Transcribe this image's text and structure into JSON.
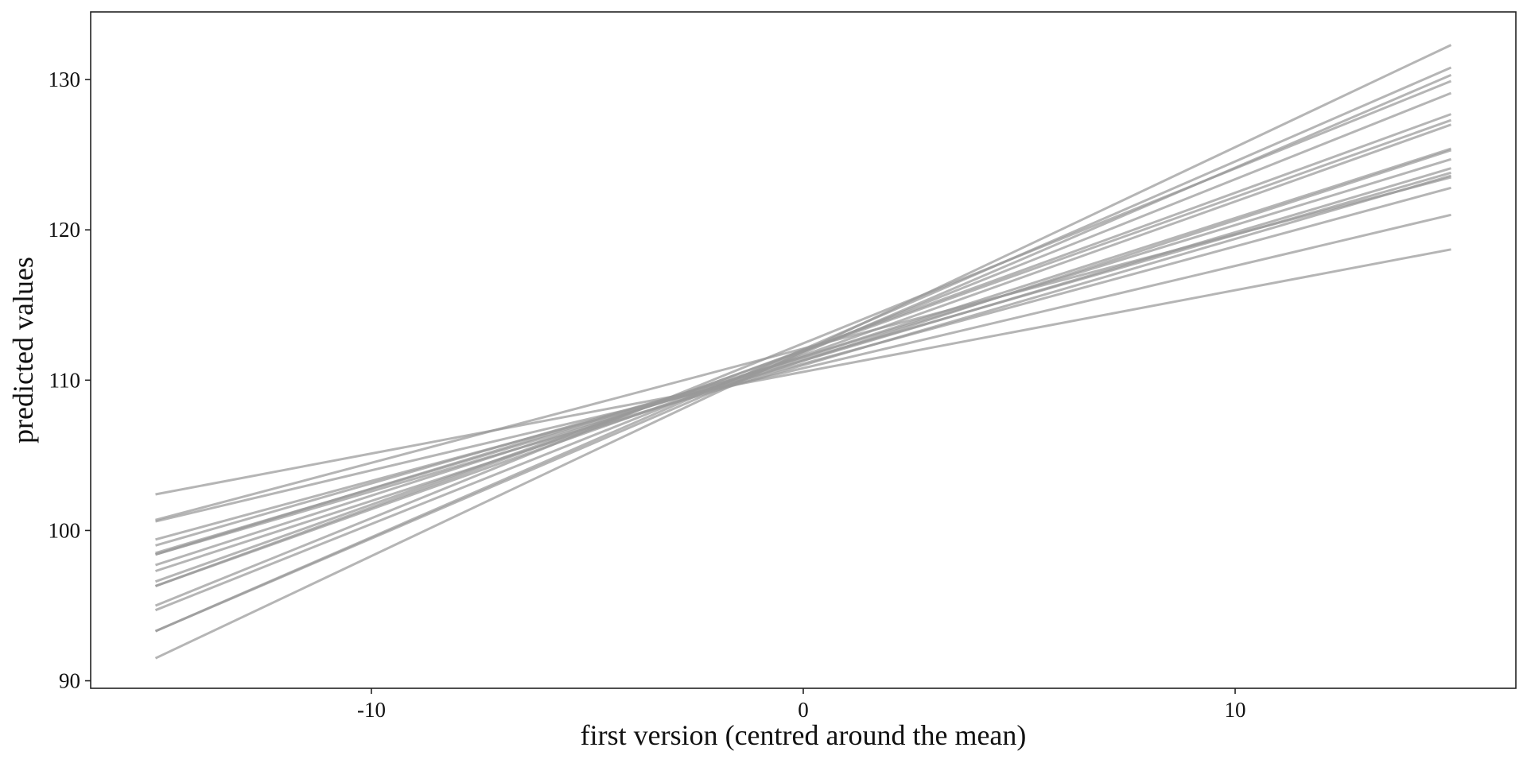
{
  "chart_data": {
    "type": "line",
    "xlabel": "first version (centred around the mean)",
    "ylabel": "predicted values",
    "xlim": [
      -16.5,
      16.5
    ],
    "ylim": [
      89.5,
      134.5
    ],
    "x_ticks": [
      -10,
      0,
      10
    ],
    "x_tick_labels": [
      "-10",
      "0",
      "10"
    ],
    "y_ticks": [
      90,
      100,
      110,
      120,
      130
    ],
    "y_tick_labels": [
      "90",
      "100",
      "110",
      "120",
      "130"
    ],
    "grid": false,
    "legend": "none",
    "line_color": "#999999",
    "line_opacity": 0.72,
    "series": [
      {
        "x": [
          -15,
          15
        ],
        "values": [
          91.5,
          132.3
        ]
      },
      {
        "x": [
          -15,
          15
        ],
        "values": [
          93.3,
          130.8
        ]
      },
      {
        "x": [
          -15,
          15
        ],
        "values": [
          93.3,
          130.3
        ]
      },
      {
        "x": [
          -15,
          15
        ],
        "values": [
          95.0,
          129.9
        ]
      },
      {
        "x": [
          -15,
          15
        ],
        "values": [
          94.7,
          129.1
        ]
      },
      {
        "x": [
          -15,
          15
        ],
        "values": [
          96.3,
          127.7
        ]
      },
      {
        "x": [
          -15,
          15
        ],
        "values": [
          96.6,
          127.3
        ]
      },
      {
        "x": [
          -15,
          15
        ],
        "values": [
          96.3,
          127.0
        ]
      },
      {
        "x": [
          -15,
          15
        ],
        "values": [
          97.7,
          125.4
        ]
      },
      {
        "x": [
          -15,
          15
        ],
        "values": [
          97.3,
          125.3
        ]
      },
      {
        "x": [
          -15,
          15
        ],
        "values": [
          98.4,
          124.7
        ]
      },
      {
        "x": [
          -15,
          15
        ],
        "values": [
          98.5,
          124.1
        ]
      },
      {
        "x": [
          -15,
          15
        ],
        "values": [
          99.0,
          123.8
        ]
      },
      {
        "x": [
          -15,
          15
        ],
        "values": [
          98.4,
          123.6
        ]
      },
      {
        "x": [
          -15,
          15
        ],
        "values": [
          99.4,
          122.8
        ]
      },
      {
        "x": [
          -15,
          15
        ],
        "values": [
          100.7,
          123.5
        ]
      },
      {
        "x": [
          -15,
          15
        ],
        "values": [
          100.6,
          121.0
        ]
      },
      {
        "x": [
          -15,
          15
        ],
        "values": [
          102.4,
          118.7
        ]
      }
    ]
  }
}
